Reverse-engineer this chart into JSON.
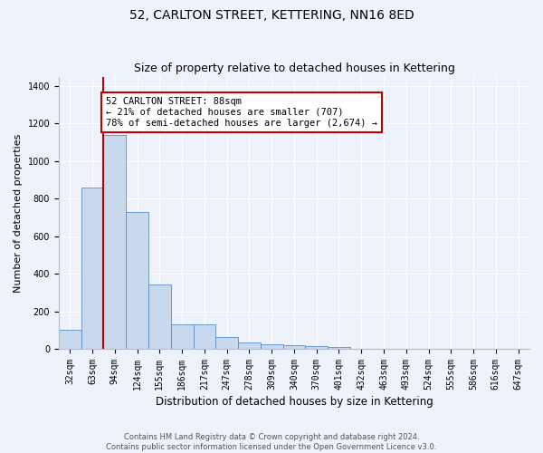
{
  "title": "52, CARLTON STREET, KETTERING, NN16 8ED",
  "subtitle": "Size of property relative to detached houses in Kettering",
  "xlabel": "Distribution of detached houses by size in Kettering",
  "ylabel": "Number of detached properties",
  "categories": [
    "32sqm",
    "63sqm",
    "94sqm",
    "124sqm",
    "155sqm",
    "186sqm",
    "217sqm",
    "247sqm",
    "278sqm",
    "309sqm",
    "340sqm",
    "370sqm",
    "401sqm",
    "432sqm",
    "463sqm",
    "493sqm",
    "524sqm",
    "555sqm",
    "586sqm",
    "616sqm",
    "647sqm"
  ],
  "values": [
    100,
    860,
    1140,
    730,
    345,
    130,
    130,
    65,
    32,
    25,
    18,
    15,
    12,
    0,
    0,
    0,
    0,
    0,
    0,
    0,
    0
  ],
  "bar_color": "#c8d9ee",
  "bar_edge_color": "#5b8ec4",
  "vline_color": "#c00000",
  "annotation_text": "52 CARLTON STREET: 88sqm\n← 21% of detached houses are smaller (707)\n78% of semi-detached houses are larger (2,674) →",
  "annotation_box_color": "#ffffff",
  "annotation_box_edge": "#c00000",
  "ylim": [
    0,
    1450
  ],
  "yticks": [
    0,
    200,
    400,
    600,
    800,
    1000,
    1200,
    1400
  ],
  "background_color": "#eef2fb",
  "plot_bg_color": "#eef2fb",
  "footer_line1": "Contains HM Land Registry data © Crown copyright and database right 2024.",
  "footer_line2": "Contains public sector information licensed under the Open Government Licence v3.0.",
  "title_fontsize": 10,
  "subtitle_fontsize": 9,
  "xlabel_fontsize": 8.5,
  "ylabel_fontsize": 8,
  "tick_fontsize": 7,
  "annotation_fontsize": 7.5
}
